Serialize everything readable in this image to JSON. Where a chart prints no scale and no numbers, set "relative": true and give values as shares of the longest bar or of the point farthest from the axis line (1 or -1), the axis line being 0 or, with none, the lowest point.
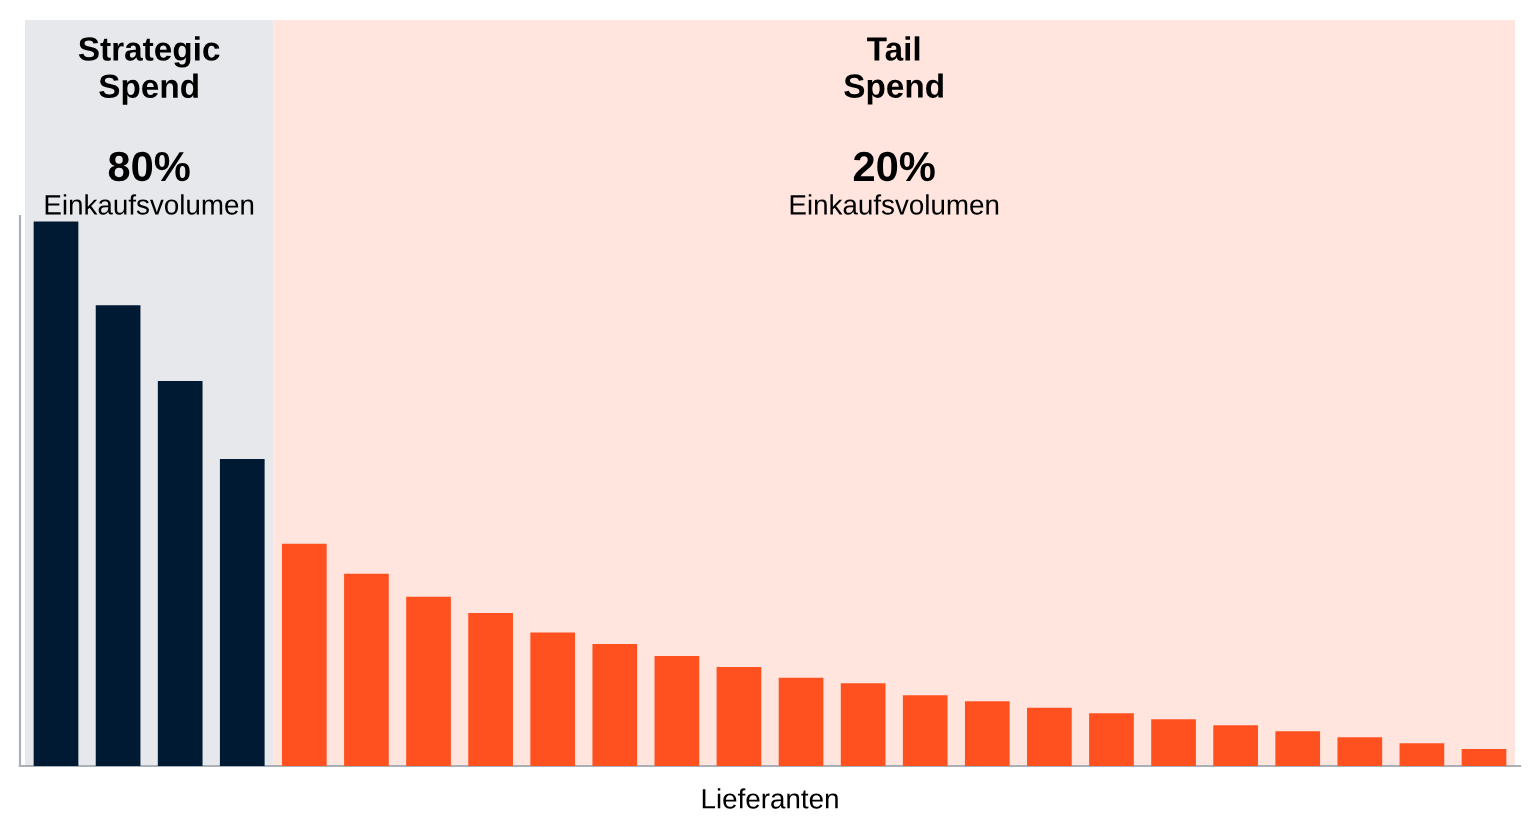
{
  "chart_data": {
    "type": "bar",
    "relative": true,
    "xlabel": "Lieferanten",
    "categories": [
      null,
      null,
      null,
      null,
      null,
      null,
      null,
      null,
      null,
      null,
      null,
      null,
      null,
      null,
      null,
      null,
      null,
      null,
      null,
      null,
      null,
      null,
      null,
      null
    ],
    "values": [
      1,
      0.846,
      0.707,
      0.564,
      0.408,
      0.353,
      0.311,
      0.281,
      0.245,
      0.224,
      0.202,
      0.182,
      0.162,
      0.152,
      0.13,
      0.119,
      0.107,
      0.097,
      0.086,
      0.075,
      0.064,
      0.053,
      0.042,
      0.031
    ],
    "colors": [
      "#001a33",
      "#001a33",
      "#001a33",
      "#001a33",
      "#ff5020",
      "#ff5020",
      "#ff5020",
      "#ff5020",
      "#ff5020",
      "#ff5020",
      "#ff5020",
      "#ff5020",
      "#ff5020",
      "#ff5020",
      "#ff5020",
      "#ff5020",
      "#ff5020",
      "#ff5020",
      "#ff5020",
      "#ff5020",
      "#ff5020",
      "#ff5020",
      "#ff5020",
      "#ff5020"
    ],
    "annotations": [
      "Strategic\nSpend",
      "80%",
      "Einkaufsvolumen",
      "Tail\nSpend",
      "20%",
      "Einkaufsvolumen"
    ]
  }
}
